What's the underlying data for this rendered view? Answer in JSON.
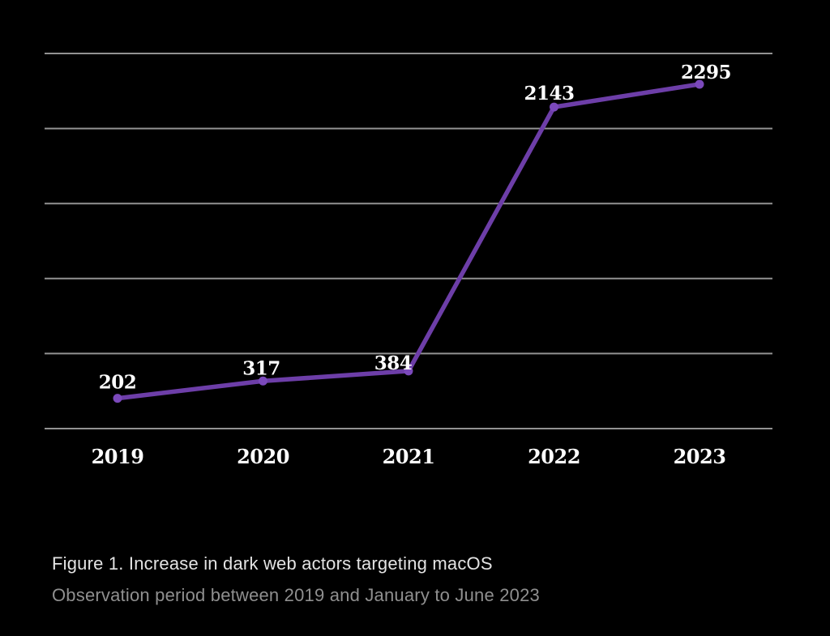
{
  "chart_data": {
    "type": "line",
    "title": "Increase in dark web actors targeting macOS",
    "categories": [
      "2019",
      "2020",
      "2021",
      "2022",
      "2023"
    ],
    "values": [
      202,
      317,
      384,
      2143,
      2295
    ],
    "xlabel": "",
    "ylabel": "",
    "ylim": [
      0,
      2500
    ],
    "grid_step": 500,
    "grid": true,
    "legend": "none",
    "colors": {
      "background": "#000000",
      "line": "#6d3ea8",
      "marker": "#7b49bb",
      "gridline": "#929292",
      "value_label": "#ffffff",
      "tick_label": "#fdfdfd"
    }
  },
  "caption": {
    "title": "Figure 1. Increase in dark web actors targeting macOS",
    "subtitle": "Observation period between 2019 and January to June 2023",
    "title_color": "#e3e3e3",
    "subtitle_color": "#8f8f8f"
  }
}
